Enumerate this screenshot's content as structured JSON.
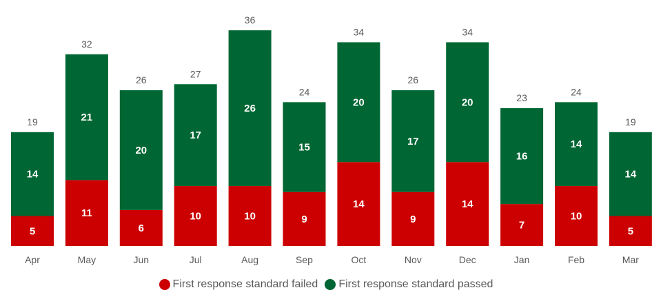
{
  "colors": {
    "failed": "#cc0000",
    "passed": "#006633"
  },
  "chart_data": {
    "type": "bar",
    "stacked": true,
    "categories": [
      "Apr",
      "May",
      "Jun",
      "Jul",
      "Aug",
      "Sep",
      "Oct",
      "Nov",
      "Dec",
      "Jan",
      "Feb",
      "Mar"
    ],
    "series": [
      {
        "name": "First response standard failed",
        "values": [
          5,
          11,
          6,
          10,
          10,
          9,
          14,
          9,
          14,
          7,
          10,
          5
        ]
      },
      {
        "name": "First response standard passed",
        "values": [
          14,
          21,
          20,
          17,
          26,
          15,
          20,
          17,
          20,
          16,
          14,
          14
        ]
      }
    ],
    "totals": [
      19,
      32,
      26,
      27,
      36,
      24,
      34,
      26,
      34,
      23,
      24,
      19
    ],
    "ylim": [
      0,
      36
    ],
    "grid": false,
    "legend_position": "bottom"
  }
}
